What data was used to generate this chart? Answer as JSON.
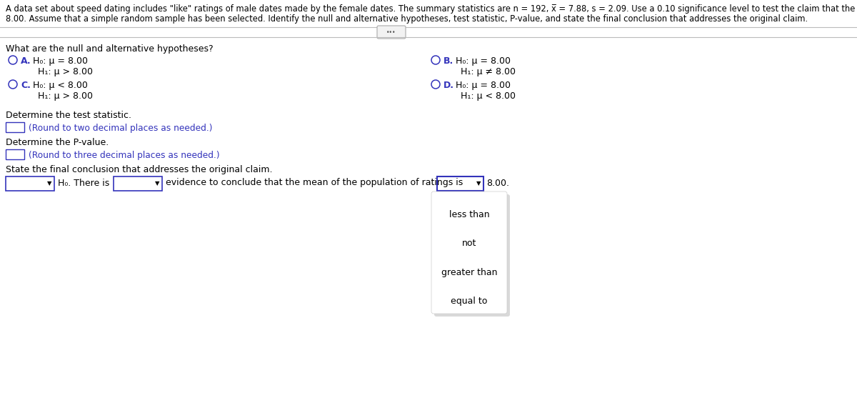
{
  "bg_color": "#ffffff",
  "header_line1": "A data set about speed dating includes \"like\" ratings of male dates made by the female dates. The summary statistics are n = 192, x̅ = 7.88, s = 2.09. Use a 0.10 significance level to test the claim that the population mean of such ratings is less than",
  "header_line2": "8.00. Assume that a simple random sample has been selected. Identify the null and alternative hypotheses, test statistic, P-value, and state the final conclusion that addresses the original claim.",
  "question_hypotheses": "What are the null and alternative hypotheses?",
  "option_A_label": "A.",
  "option_A_h0": "H₀: μ = 8.00",
  "option_A_h1": "H₁: μ > 8.00",
  "option_B_label": "B.",
  "option_B_h0": "H₀: μ = 8.00",
  "option_B_h1": "H₁: μ ≠ 8.00",
  "option_C_label": "C.",
  "option_C_h0": "H₀: μ < 8.00",
  "option_C_h1": "H₁: μ > 8.00",
  "option_D_label": "D.",
  "option_D_h0": "H₀: μ = 8.00",
  "option_D_h1": "H₁: μ < 8.00",
  "test_stat_label": "Determine the test statistic.",
  "test_stat_hint": "(Round to two decimal places as needed.)",
  "pvalue_label": "Determine the P-value.",
  "pvalue_hint": "(Round to three decimal places as needed.)",
  "conclusion_label": "State the final conclusion that addresses the original claim.",
  "dropdown_options": [
    "less than",
    "not",
    "greater than",
    "equal to"
  ],
  "text_color": "#000000",
  "blue_color": "#3333bb",
  "link_color": "#3333bb",
  "separator_color": "#bbbbbb",
  "dot_btn_color": "#888888"
}
